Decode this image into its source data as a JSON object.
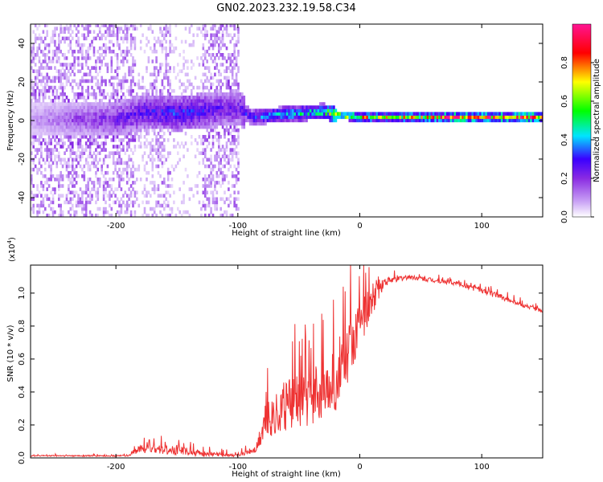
{
  "title": "GN02.2023.232.19.58.C34",
  "chart_data": [
    {
      "type": "heatmap",
      "name": "spectrogram",
      "xlabel": "Height of straight line (km)",
      "ylabel": "Frequency (Hz)",
      "xlim": [
        -270,
        150
      ],
      "ylim": [
        -50,
        50
      ],
      "xticks": [
        -200,
        -100,
        0,
        100
      ],
      "yticks": [
        -40,
        -20,
        0,
        20,
        40
      ],
      "scatter_region": [
        {
          "x_from": -270,
          "x_to": -185,
          "density": 0.55
        },
        {
          "x_from": -185,
          "x_to": -172,
          "density": 0.25
        },
        {
          "x_from": -172,
          "x_to": -155,
          "density": 0.5
        },
        {
          "x_from": -155,
          "x_to": -150,
          "density": 0.15
        },
        {
          "x_from": -150,
          "x_to": -130,
          "density": 0.2
        },
        {
          "x_from": -130,
          "x_to": -100,
          "density": 0.55
        }
      ],
      "ridge": [
        {
          "x": -270,
          "freq": 0,
          "amp": 0.15
        },
        {
          "x": -200,
          "freq": 0,
          "amp": 0.3
        },
        {
          "x": -175,
          "freq": 4,
          "amp": 0.35
        },
        {
          "x": -150,
          "freq": 3,
          "amp": 0.4
        },
        {
          "x": -100,
          "freq": 6,
          "amp": 0.3
        },
        {
          "x": -90,
          "freq": 1,
          "amp": 0.4
        },
        {
          "x": -70,
          "freq": 2,
          "amp": 0.5
        },
        {
          "x": -50,
          "freq": 3,
          "amp": 0.55
        },
        {
          "x": -30,
          "freq": 4,
          "amp": 0.6
        },
        {
          "x": -20,
          "freq": 2,
          "amp": 0.8
        },
        {
          "x": 0,
          "freq": 1,
          "amp": 0.75
        },
        {
          "x": 20,
          "freq": 1,
          "amp": 0.7
        },
        {
          "x": 50,
          "freq": 1,
          "amp": 0.75
        },
        {
          "x": 80,
          "freq": 1,
          "amp": 0.9
        },
        {
          "x": 110,
          "freq": 1,
          "amp": 0.85
        },
        {
          "x": 150,
          "freq": 1,
          "amp": 0.9
        }
      ],
      "colorbar": {
        "label": "Normalized spectral amplitude",
        "range": [
          0,
          1
        ],
        "ticks": [
          0.0,
          0.2,
          0.4,
          0.6,
          0.8
        ],
        "colors": [
          "#ffffff",
          "#c9a2f5",
          "#8a2be2",
          "#3a00ff",
          "#00e5ff",
          "#00ff00",
          "#ffff00",
          "#ff0000",
          "#ff1493"
        ]
      }
    },
    {
      "type": "line",
      "name": "snr",
      "xlabel": "Height of straight line (km)",
      "ylabel": "SNR (10 * v/v)",
      "y_multiplier": "(x10",
      "y_multiplier_exp": "4",
      "y_multiplier_close": ")",
      "xlim": [
        -270,
        150
      ],
      "ylim": [
        0,
        1.17
      ],
      "xticks": [
        -200,
        -100,
        0,
        100
      ],
      "yticks": [
        0.0,
        0.2,
        0.4,
        0.6,
        0.8,
        1.0
      ],
      "color": "#ee3333",
      "envelope": [
        {
          "x": -270,
          "base": 0.01,
          "spread": 0.01
        },
        {
          "x": -190,
          "base": 0.01,
          "spread": 0.01
        },
        {
          "x": -180,
          "base": 0.04,
          "spread": 0.06
        },
        {
          "x": -150,
          "base": 0.03,
          "spread": 0.07
        },
        {
          "x": -130,
          "base": 0.015,
          "spread": 0.04
        },
        {
          "x": -100,
          "base": 0.01,
          "spread": 0.02
        },
        {
          "x": -85,
          "base": 0.04,
          "spread": 0.05
        },
        {
          "x": -78,
          "base": 0.15,
          "spread": 0.25
        },
        {
          "x": -60,
          "base": 0.2,
          "spread": 0.4
        },
        {
          "x": -40,
          "base": 0.25,
          "spread": 0.4
        },
        {
          "x": -20,
          "base": 0.35,
          "spread": 0.5
        },
        {
          "x": -10,
          "base": 0.5,
          "spread": 0.45
        },
        {
          "x": 0,
          "base": 0.7,
          "spread": 0.3
        },
        {
          "x": 10,
          "base": 0.9,
          "spread": 0.25
        },
        {
          "x": 20,
          "base": 1.05,
          "spread": 0.06
        },
        {
          "x": 40,
          "base": 1.09,
          "spread": 0.03
        },
        {
          "x": 80,
          "base": 1.05,
          "spread": 0.03
        },
        {
          "x": 110,
          "base": 0.98,
          "spread": 0.04
        },
        {
          "x": 150,
          "base": 0.88,
          "spread": 0.03
        }
      ]
    }
  ]
}
